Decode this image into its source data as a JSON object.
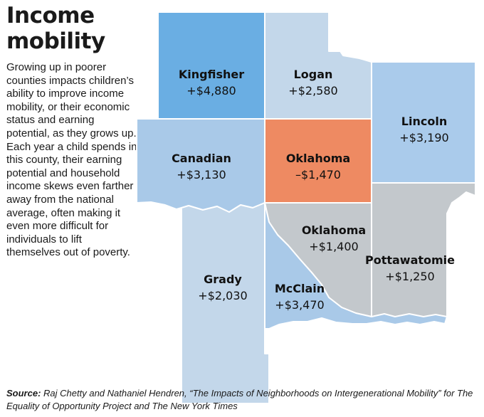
{
  "title": "Income mobility",
  "description": "Growing up in poorer counties impacts children’s ability to improve income mobility, or their economic status and earning potential, as they grows up. Each year a child spends in this county, their earning potential and household income skews even farther away from the national average, often making it even more difficult for individuals to lift themselves out of poverty.",
  "counties": [
    {
      "name": "Kingfisher",
      "value": "+$4,880",
      "color": "#6aaee3"
    },
    {
      "name": "Logan",
      "value": "+$2,580",
      "color": "#c3d7ea"
    },
    {
      "name": "Lincoln",
      "value": "+$3,190",
      "color": "#aacbeb"
    },
    {
      "name": "Canadian",
      "value": "+$3,130",
      "color": "#a9c9e8"
    },
    {
      "name": "Oklahoma",
      "value": "–$1,470",
      "color": "#ee8a62"
    },
    {
      "name": "Oklahoma",
      "value": "+$1,400",
      "color": "#c3c8cc"
    },
    {
      "name": "Pottawatomie",
      "value": "+$1,250",
      "color": "#c3c8cc"
    },
    {
      "name": "Grady",
      "value": "+$2,030",
      "color": "#c3d7ea"
    },
    {
      "name": "McClain",
      "value": "+$3,470",
      "color": "#a9c9e8"
    }
  ],
  "source": {
    "label": "Source:",
    "text": "Raj Chetty and Nathaniel Hendren, “The Impacts of Neighborhoods on Intergenerational Mobility” for The Equality of Opportunity Project and The New York Times"
  }
}
